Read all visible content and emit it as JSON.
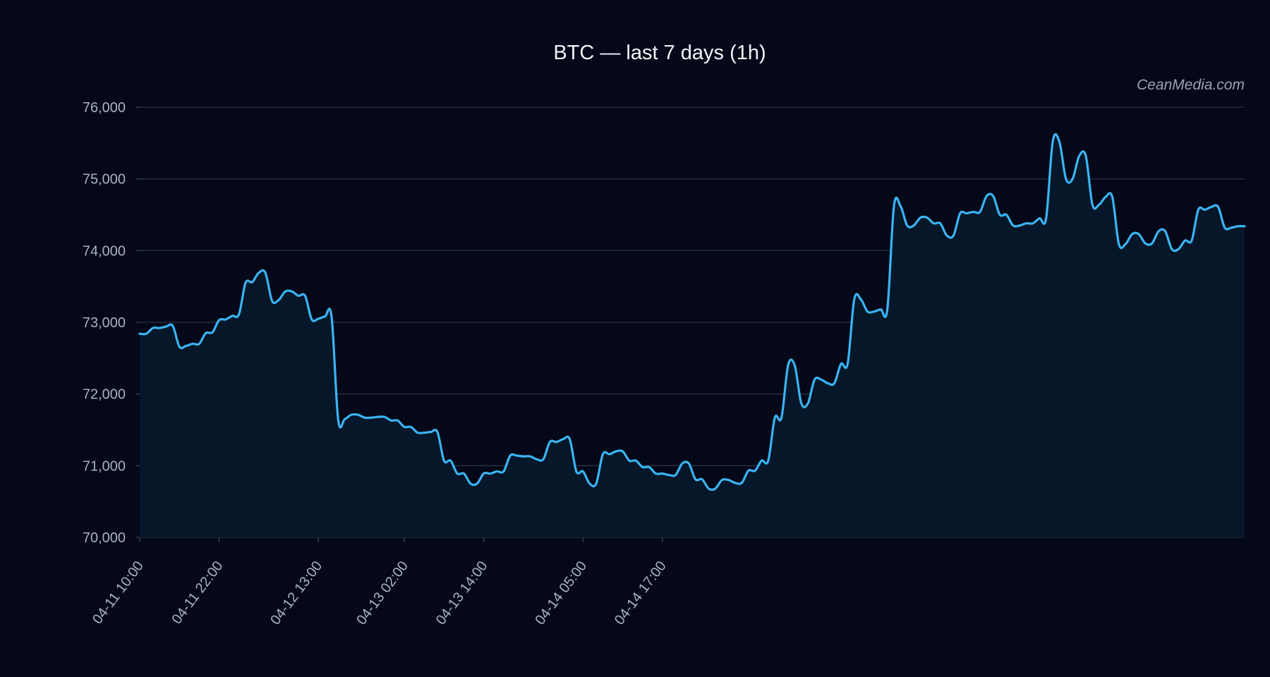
{
  "title": "BTC — last 7 days (1h)",
  "watermark": "CeanMedia.com",
  "colors": {
    "background": "#040818",
    "line": "#3ab4f2",
    "area_fill": "#06172a",
    "grid": "#2a3242",
    "tick_text": "#aab2c0",
    "title_text": "#f2f4f8"
  },
  "chart_data": {
    "type": "area",
    "title": "BTC — last 7 days (1h)",
    "xlabel": "",
    "ylabel": "",
    "ylim": [
      70000,
      76000
    ],
    "grid": true,
    "x_tick_labels": [
      "04-11 10:00",
      "04-11 22:00",
      "04-12 13:00",
      "04-13 02:00",
      "04-13 14:00",
      "04-14 05:00",
      "04-14 17:00"
    ],
    "y_tick_labels": [
      "76,000",
      "75,000",
      "74,000",
      "73,000",
      "72,000",
      "71,000",
      "70,000"
    ],
    "y_tick_values": [
      76000,
      75000,
      74000,
      73000,
      72000,
      71000,
      70000
    ],
    "series": [
      {
        "values": [
          72840,
          72840,
          72920,
          72920,
          72940,
          72950,
          72660,
          72670,
          72700,
          72700,
          72850,
          72860,
          73030,
          73040,
          73090,
          73110,
          73550,
          73560,
          73690,
          73690,
          73300,
          73310,
          73430,
          73430,
          73370,
          73370,
          73040,
          73050,
          73080,
          73080,
          71640,
          71650,
          71710,
          71710,
          71670,
          71670,
          71680,
          71680,
          71630,
          71630,
          71540,
          71540,
          71460,
          71460,
          71470,
          71470,
          71070,
          71070,
          70890,
          70890,
          70750,
          70750,
          70890,
          70890,
          70920,
          70920,
          71140,
          71140,
          71130,
          71130,
          71090,
          71090,
          71330,
          71330,
          71370,
          71370,
          70920,
          70920,
          70750,
          70750,
          71160,
          71160,
          71200,
          71200,
          71070,
          71070,
          70980,
          70980,
          70890,
          70890,
          70870,
          70870,
          71030,
          71030,
          70810,
          70810,
          70680,
          70680,
          70800,
          70800,
          70760,
          70760,
          70930,
          70930,
          71070,
          71070,
          71670,
          71670,
          72400,
          72400,
          71870,
          71870,
          72200,
          72200,
          72150,
          72150,
          72420,
          72420,
          73320,
          73320,
          73150,
          73150,
          73180,
          73180,
          74620,
          74620,
          74350,
          74350,
          74460,
          74460,
          74380,
          74380,
          74210,
          74210,
          74520,
          74520,
          74540,
          74540,
          74760,
          74760,
          74500,
          74500,
          74350,
          74350,
          74380,
          74380,
          74450,
          74450,
          75520,
          75520,
          75000,
          75000,
          75320,
          75320,
          74640,
          74640,
          74750,
          74750,
          74090,
          74090,
          74230,
          74230,
          74100,
          74100,
          74270,
          74270,
          74020,
          74020,
          74140,
          74140,
          74570,
          74570,
          74610,
          74610,
          74320,
          74320,
          74340,
          74340
        ]
      }
    ]
  }
}
